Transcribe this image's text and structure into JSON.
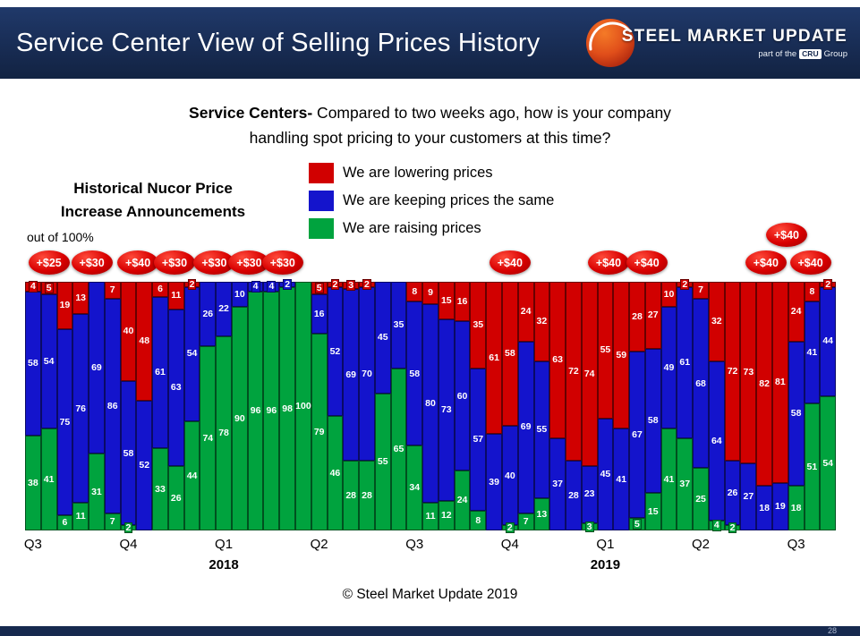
{
  "header": {
    "title": "Service Center View of Selling Prices History",
    "logo": {
      "line1": "STEEL MARKET UPDATE",
      "tagline_prefix": "part of the",
      "tagline_brand": "CRU",
      "tagline_suffix": "Group"
    }
  },
  "subtitle": {
    "lead": "Service Centers-",
    "line1_rest": " Compared to two weeks ago, how is your company",
    "line2": "handling spot pricing to your customers at this time?"
  },
  "left_panel": {
    "title_line1": "Historical Nucor Price",
    "title_line2": "Increase Announcements",
    "axis_note": "out of 100%"
  },
  "footer": {
    "copyright": "© Steel Market Update 2019",
    "page_number": "28"
  },
  "chart_data": {
    "type": "bar",
    "stacked": true,
    "units": "percent of respondents",
    "ylim": [
      0,
      100
    ],
    "bars_per_quarter": 6,
    "quarter_labels": [
      "Q3",
      "Q4",
      "Q1",
      "Q2",
      "Q3",
      "Q4",
      "Q1",
      "Q2",
      "Q3"
    ],
    "year_labels": [
      {
        "text": "2018",
        "quarter_index": 2
      },
      {
        "text": "2019",
        "quarter_index": 6
      }
    ],
    "series": [
      {
        "name": "We are lowering prices",
        "color": "#d10000",
        "values": [
          4,
          5,
          19,
          13,
          0,
          7,
          40,
          48,
          6,
          11,
          2,
          0,
          0,
          0,
          0,
          0,
          0,
          0,
          5,
          2,
          3,
          2,
          0,
          0,
          8,
          9,
          15,
          16,
          35,
          61,
          58,
          24,
          32,
          63,
          72,
          74,
          55,
          59,
          28,
          27,
          10,
          2,
          7,
          32,
          72,
          73,
          82,
          81,
          24,
          8,
          2
        ]
      },
      {
        "name": "We are keeping prices the same",
        "color": "#1414cc",
        "values": [
          58,
          54,
          75,
          76,
          69,
          86,
          58,
          52,
          61,
          63,
          54,
          26,
          22,
          10,
          4,
          4,
          2,
          0,
          16,
          52,
          69,
          70,
          45,
          35,
          58,
          80,
          73,
          60,
          57,
          39,
          40,
          69,
          55,
          37,
          28,
          23,
          45,
          41,
          67,
          58,
          49,
          61,
          68,
          64,
          26,
          27,
          18,
          19,
          58,
          41,
          44
        ]
      },
      {
        "name": "We are raising prices",
        "color": "#00a33e",
        "values": [
          38,
          41,
          6,
          11,
          31,
          7,
          2,
          0,
          33,
          26,
          44,
          74,
          78,
          90,
          96,
          96,
          98,
          100,
          79,
          46,
          28,
          28,
          55,
          65,
          34,
          11,
          12,
          24,
          8,
          0,
          2,
          7,
          13,
          0,
          0,
          3,
          0,
          0,
          5,
          15,
          41,
          37,
          25,
          4,
          2,
          0,
          0,
          0,
          18,
          51,
          54
        ]
      }
    ],
    "nucor_badges": [
      {
        "label": "+$25",
        "bar": 2.0,
        "raised": false
      },
      {
        "label": "+$30",
        "bar": 4.7,
        "raised": false
      },
      {
        "label": "+$40",
        "bar": 7.6,
        "raised": false
      },
      {
        "label": "+$30",
        "bar": 9.9,
        "raised": false
      },
      {
        "label": "+$30",
        "bar": 12.4,
        "raised": false
      },
      {
        "label": "+$30",
        "bar": 14.6,
        "raised": false
      },
      {
        "label": "+$30",
        "bar": 16.7,
        "raised": false
      },
      {
        "label": "+$40",
        "bar": 31.0,
        "raised": false
      },
      {
        "label": "+$40",
        "bar": 37.2,
        "raised": false
      },
      {
        "label": "+$40",
        "bar": 39.6,
        "raised": false
      },
      {
        "label": "+$40",
        "bar": 47.1,
        "raised": false
      },
      {
        "label": "+$40",
        "bar": 48.4,
        "raised": true
      },
      {
        "label": "+$40",
        "bar": 49.9,
        "raised": false
      }
    ]
  }
}
